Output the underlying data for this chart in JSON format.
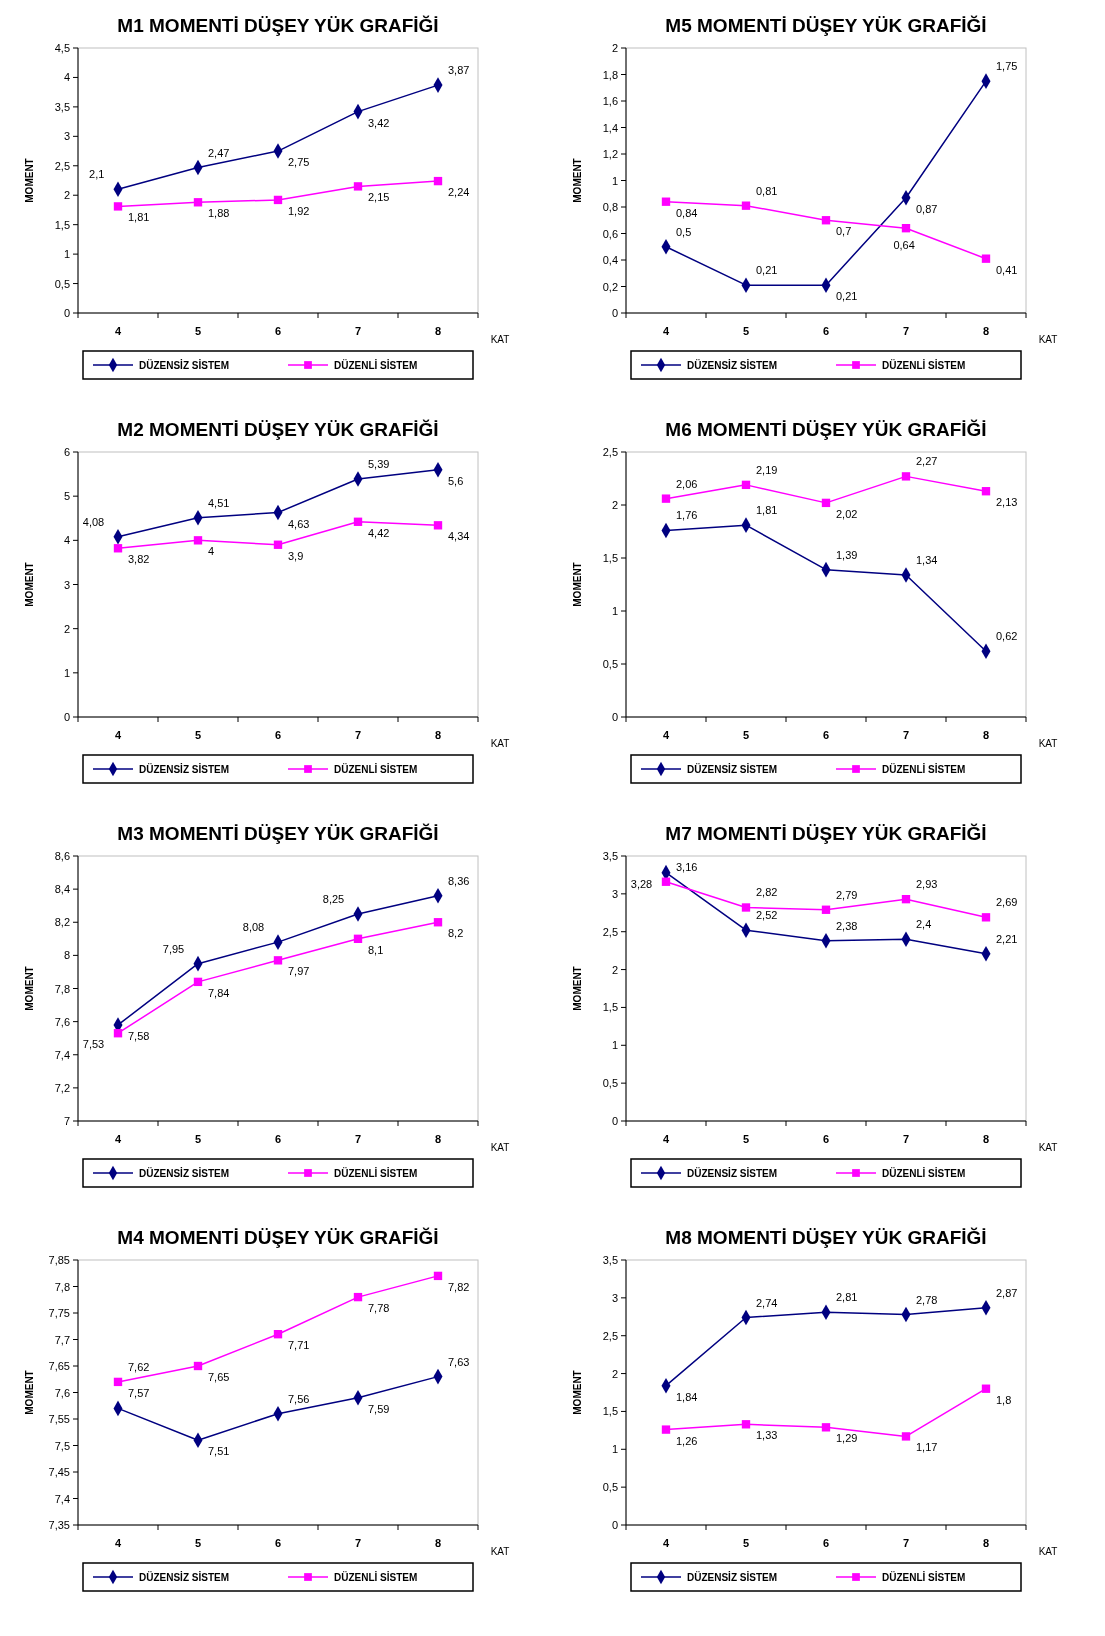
{
  "chart_data": [
    {
      "type": "line",
      "title": "M1 MOMENTİ DÜŞEY YÜK GRAFİĞİ",
      "xlabel": "KAT",
      "ylabel": "MOMENT",
      "categories": [
        "4",
        "5",
        "6",
        "7",
        "8"
      ],
      "ylim": [
        0,
        4.5
      ],
      "yticks": [
        0,
        {
          "value": 0.5,
          "label": "0,5"
        },
        1,
        {
          "value": 1.5,
          "label": "1,5"
        },
        2,
        {
          "value": 2.5,
          "label": "2,5"
        },
        3,
        {
          "value": 3.5,
          "label": "3,5"
        },
        4,
        {
          "value": 4.5,
          "label": "4,5"
        }
      ],
      "legend": "bottom",
      "series": [
        {
          "name": "DÜZENSİZ SİSTEM",
          "color": "#000080",
          "marker": "diamond",
          "values": [
            2.1,
            2.47,
            2.75,
            3.42,
            3.87
          ],
          "value_labels": [
            "2,1",
            "2,47",
            "2,75",
            "3,42",
            "3,87"
          ]
        },
        {
          "name": "DÜZENLİ SİSTEM",
          "color": "#ff00ff",
          "marker": "square",
          "values": [
            1.81,
            1.88,
            1.92,
            2.15,
            2.24
          ],
          "value_labels": [
            "1,81",
            "1,88",
            "1,92",
            "2,15",
            "2,24"
          ]
        }
      ]
    },
    {
      "type": "line",
      "title": "M5 MOMENTİ DÜŞEY YÜK GRAFİĞİ",
      "xlabel": "KAT",
      "ylabel": "MOMENT",
      "categories": [
        "4",
        "5",
        "6",
        "7",
        "8"
      ],
      "ylim": [
        0,
        2
      ],
      "yticks": [
        0,
        {
          "value": 0.2,
          "label": "0,2"
        },
        {
          "value": 0.4,
          "label": "0,4"
        },
        {
          "value": 0.6,
          "label": "0,6"
        },
        {
          "value": 0.8,
          "label": "0,8"
        },
        1,
        {
          "value": 1.2,
          "label": "1,2"
        },
        {
          "value": 1.4,
          "label": "1,4"
        },
        {
          "value": 1.6,
          "label": "1,6"
        },
        {
          "value": 1.8,
          "label": "1,8"
        },
        2
      ],
      "legend": "bottom",
      "series": [
        {
          "name": "DÜZENSİZ SİSTEM",
          "color": "#000080",
          "marker": "diamond",
          "values": [
            0.5,
            0.21,
            0.21,
            0.87,
            1.75
          ],
          "value_labels": [
            "0,5",
            "0,21",
            "0,21",
            "0,87",
            "1,75"
          ]
        },
        {
          "name": "DÜZENLİ SİSTEM",
          "color": "#ff00ff",
          "marker": "square",
          "values": [
            0.84,
            0.81,
            0.7,
            0.64,
            0.41
          ],
          "value_labels": [
            "0,84",
            "0,81",
            "0,7",
            "0,64",
            "0,41"
          ]
        }
      ]
    },
    {
      "type": "line",
      "title": "M2 MOMENTİ DÜŞEY YÜK GRAFİĞİ",
      "xlabel": "KAT",
      "ylabel": "MOMENT",
      "categories": [
        "4",
        "5",
        "6",
        "7",
        "8"
      ],
      "ylim": [
        0,
        6
      ],
      "yticks": [
        0,
        1,
        2,
        3,
        4,
        5,
        6
      ],
      "legend": "bottom",
      "series": [
        {
          "name": "DÜZENSİZ SİSTEM",
          "color": "#000080",
          "marker": "diamond",
          "values": [
            4.08,
            4.51,
            4.63,
            5.39,
            5.6
          ],
          "value_labels": [
            "4,08",
            "4,51",
            "4,63",
            "5,39",
            "5,6"
          ]
        },
        {
          "name": "DÜZENLİ SİSTEM",
          "color": "#ff00ff",
          "marker": "square",
          "values": [
            3.82,
            4,
            3.9,
            4.42,
            4.34
          ],
          "value_labels": [
            "3,82",
            "4",
            "3,9",
            "4,42",
            "4,34"
          ]
        }
      ]
    },
    {
      "type": "line",
      "title": "M6 MOMENTİ DÜŞEY YÜK GRAFİĞİ",
      "xlabel": "KAT",
      "ylabel": "MOMENT",
      "categories": [
        "4",
        "5",
        "6",
        "7",
        "8"
      ],
      "ylim": [
        0,
        2.5
      ],
      "yticks": [
        0,
        {
          "value": 0.5,
          "label": "0,5"
        },
        1,
        {
          "value": 1.5,
          "label": "1,5"
        },
        2,
        {
          "value": 2.5,
          "label": "2,5"
        }
      ],
      "legend": "bottom",
      "series": [
        {
          "name": "DÜZENSİZ SİSTEM",
          "color": "#000080",
          "marker": "diamond",
          "values": [
            1.76,
            1.81,
            1.39,
            1.34,
            0.62
          ],
          "value_labels": [
            "1,76",
            "1,81",
            "1,39",
            "1,34",
            "0,62"
          ]
        },
        {
          "name": "DÜZENLİ SİSTEM",
          "color": "#ff00ff",
          "marker": "square",
          "values": [
            2.06,
            2.19,
            2.02,
            2.27,
            2.13
          ],
          "value_labels": [
            "2,06",
            "2,19",
            "2,02",
            "2,27",
            "2,13"
          ]
        }
      ]
    },
    {
      "type": "line",
      "title": "M3 MOMENTİ DÜŞEY YÜK GRAFİĞİ",
      "xlabel": "KAT",
      "ylabel": "MOMENT",
      "categories": [
        "4",
        "5",
        "6",
        "7",
        "8"
      ],
      "ylim": [
        7,
        8.6
      ],
      "yticks": [
        7,
        {
          "value": 7.2,
          "label": "7,2"
        },
        {
          "value": 7.4,
          "label": "7,4"
        },
        {
          "value": 7.6,
          "label": "7,6"
        },
        {
          "value": 7.8,
          "label": "7,8"
        },
        8,
        {
          "value": 8.2,
          "label": "8,2"
        },
        {
          "value": 8.4,
          "label": "8,4"
        },
        {
          "value": 8.6,
          "label": "8,6"
        }
      ],
      "legend": "bottom",
      "series": [
        {
          "name": "DÜZENSİZ SİSTEM",
          "color": "#000080",
          "marker": "diamond",
          "values": [
            7.58,
            7.95,
            8.08,
            8.25,
            8.36
          ],
          "value_labels": [
            "7,58",
            "7,95",
            "8,08",
            "8,25",
            "8,36"
          ]
        },
        {
          "name": "DÜZENLİ SİSTEM",
          "color": "#ff00ff",
          "marker": "square",
          "values": [
            7.53,
            7.84,
            7.97,
            8.1,
            8.2
          ],
          "value_labels": [
            "7,53",
            "7,84",
            "7,97",
            "8,1",
            "8,2"
          ]
        }
      ]
    },
    {
      "type": "line",
      "title": "M7 MOMENTİ DÜŞEY YÜK GRAFİĞİ",
      "xlabel": "KAT",
      "ylabel": "MOMENT",
      "categories": [
        "4",
        "5",
        "6",
        "7",
        "8"
      ],
      "ylim": [
        0,
        3.5
      ],
      "yticks": [
        0,
        {
          "value": 0.5,
          "label": "0,5"
        },
        1,
        {
          "value": 1.5,
          "label": "1,5"
        },
        2,
        {
          "value": 2.5,
          "label": "2,5"
        },
        3,
        {
          "value": 3.5,
          "label": "3,5"
        }
      ],
      "legend": "bottom",
      "series": [
        {
          "name": "DÜZENSİZ SİSTEM",
          "color": "#000080",
          "marker": "diamond",
          "values": [
            3.28,
            2.52,
            2.38,
            2.4,
            2.21
          ],
          "value_labels": [
            "3,28",
            "2,52",
            "2,38",
            "2,4",
            "2,21"
          ]
        },
        {
          "name": "DÜZENLİ SİSTEM",
          "color": "#ff00ff",
          "marker": "square",
          "values": [
            3.16,
            2.82,
            2.79,
            2.93,
            2.69
          ],
          "value_labels": [
            "3,16",
            "2,82",
            "2,79",
            "2,93",
            "2,69"
          ]
        }
      ]
    },
    {
      "type": "line",
      "title": "M4 MOMENTİ DÜŞEY YÜK GRAFİĞİ",
      "xlabel": "KAT",
      "ylabel": "MOMENT",
      "categories": [
        "4",
        "5",
        "6",
        "7",
        "8"
      ],
      "ylim": [
        7.35,
        7.85
      ],
      "yticks": [
        {
          "value": 7.35,
          "label": "7,35"
        },
        {
          "value": 7.4,
          "label": "7,4"
        },
        {
          "value": 7.45,
          "label": "7,45"
        },
        {
          "value": 7.5,
          "label": "7,5"
        },
        {
          "value": 7.55,
          "label": "7,55"
        },
        {
          "value": 7.6,
          "label": "7,6"
        },
        {
          "value": 7.65,
          "label": "7,65"
        },
        {
          "value": 7.7,
          "label": "7,7"
        },
        {
          "value": 7.75,
          "label": "7,75"
        },
        {
          "value": 7.8,
          "label": "7,8"
        },
        {
          "value": 7.85,
          "label": "7,85"
        }
      ],
      "legend": "bottom",
      "series": [
        {
          "name": "DÜZENSİZ SİSTEM",
          "color": "#000080",
          "marker": "diamond",
          "values": [
            7.57,
            7.51,
            7.56,
            7.59,
            7.63
          ],
          "value_labels": [
            "7,57",
            "7,51",
            "7,56",
            "7,59",
            "7,63"
          ]
        },
        {
          "name": "DÜZENLİ SİSTEM",
          "color": "#ff00ff",
          "marker": "square",
          "values": [
            7.62,
            7.65,
            7.71,
            7.78,
            7.82
          ],
          "value_labels": [
            "7,62",
            "7,65",
            "7,71",
            "7,78",
            "7,82"
          ]
        }
      ]
    },
    {
      "type": "line",
      "title": "M8 MOMENTİ DÜŞEY YÜK GRAFİĞİ",
      "xlabel": "KAT",
      "ylabel": "MOMENT",
      "categories": [
        "4",
        "5",
        "6",
        "7",
        "8"
      ],
      "ylim": [
        0,
        3.5
      ],
      "yticks": [
        0,
        {
          "value": 0.5,
          "label": "0,5"
        },
        1,
        {
          "value": 1.5,
          "label": "1,5"
        },
        2,
        {
          "value": 2.5,
          "label": "2,5"
        },
        3,
        {
          "value": 3.5,
          "label": "3,5"
        }
      ],
      "legend": "bottom",
      "series": [
        {
          "name": "DÜZENSİZ SİSTEM",
          "color": "#000080",
          "marker": "diamond",
          "values": [
            1.84,
            2.74,
            2.81,
            2.78,
            2.87
          ],
          "value_labels": [
            "1,84",
            "2,74",
            "2,81",
            "2,78",
            "2,87"
          ]
        },
        {
          "name": "DÜZENLİ SİSTEM",
          "color": "#ff00ff",
          "marker": "square",
          "values": [
            1.26,
            1.33,
            1.29,
            1.17,
            1.8
          ],
          "value_labels": [
            "1,26",
            "1,33",
            "1,29",
            "1,17",
            "1,8"
          ]
        }
      ]
    }
  ]
}
